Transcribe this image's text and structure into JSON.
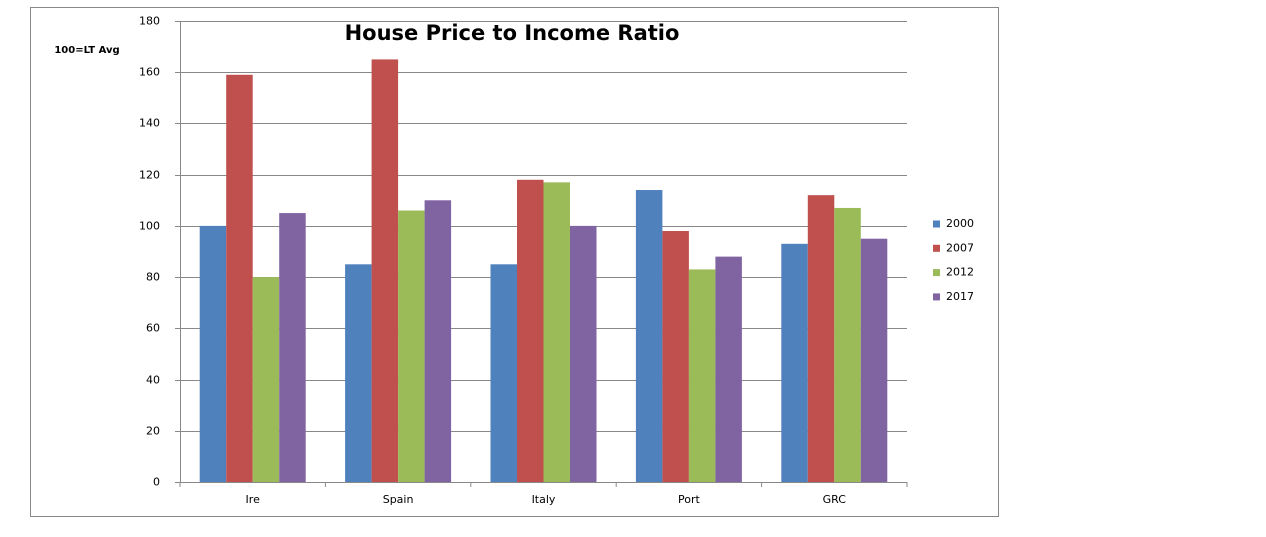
{
  "chart_data": {
    "type": "bar",
    "title": "House Price to Income Ratio",
    "y_label": "100=LT Avg",
    "categories": [
      "Ire",
      "Spain",
      "Italy",
      "Port",
      "GRC"
    ],
    "series": [
      {
        "name": "2000",
        "color": "#4f81bd",
        "values": [
          100,
          85,
          85,
          114,
          93
        ]
      },
      {
        "name": "2007",
        "color": "#c0504d",
        "values": [
          159,
          165,
          118,
          98,
          112
        ]
      },
      {
        "name": "2012",
        "color": "#9bbb59",
        "values": [
          80,
          106,
          117,
          83,
          107
        ]
      },
      {
        "name": "2017",
        "color": "#8064a2",
        "values": [
          105,
          110,
          100,
          88,
          95
        ]
      }
    ],
    "ylim": [
      0,
      180
    ],
    "yticks": [
      0,
      20,
      40,
      60,
      80,
      100,
      120,
      140,
      160,
      180
    ],
    "grid": true,
    "legend": "right"
  }
}
